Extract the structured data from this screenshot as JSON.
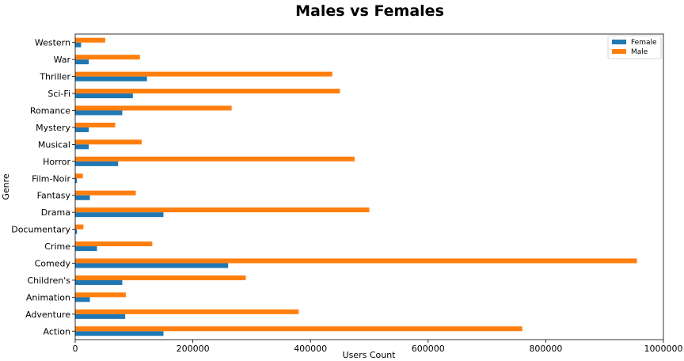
{
  "chart_data": {
    "type": "bar",
    "orientation": "horizontal",
    "title": "Males vs Females",
    "xlabel": "Users Count",
    "ylabel": "Genre",
    "xlim": [
      0,
      1000000
    ],
    "xticks": [
      0,
      200000,
      400000,
      600000,
      800000,
      1000000
    ],
    "xtick_labels": [
      "0",
      "200000",
      "400000",
      "600000",
      "800000",
      "1000000"
    ],
    "categories": [
      "Action",
      "Adventure",
      "Animation",
      "Children's",
      "Comedy",
      "Crime",
      "Documentary",
      "Drama",
      "Fantasy",
      "Film-Noir",
      "Horror",
      "Musical",
      "Mystery",
      "Romance",
      "Sci-Fi",
      "Thriller",
      "War",
      "Western"
    ],
    "series": [
      {
        "name": "Female",
        "color": "#1f77b4",
        "values": [
          150000,
          85000,
          25000,
          80000,
          260000,
          37000,
          3000,
          150000,
          25000,
          3000,
          73000,
          23000,
          23000,
          80000,
          98000,
          122000,
          23000,
          10000
        ]
      },
      {
        "name": "Male",
        "color": "#ff7f0e",
        "values": [
          760000,
          380000,
          86000,
          290000,
          955000,
          131000,
          14000,
          500000,
          103000,
          13000,
          475000,
          113000,
          68000,
          266000,
          450000,
          437000,
          110000,
          51000
        ]
      }
    ],
    "legend": {
      "position": "top-right",
      "entries": [
        "Female",
        "Male"
      ]
    },
    "grid": false
  }
}
